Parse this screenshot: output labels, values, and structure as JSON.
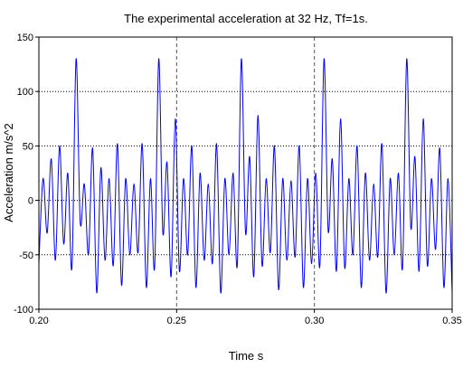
{
  "chart_data": {
    "type": "line",
    "title": "The experimental acceleration at 32 Hz, Tf=1s.",
    "xlabel": "Time s",
    "ylabel": "Acceleration  m/s^2",
    "xlim": [
      0.2,
      0.35
    ],
    "ylim": [
      -100,
      150
    ],
    "x_ticks": [
      0.2,
      0.25,
      0.3,
      0.35
    ],
    "x_tick_labels": [
      "0.20",
      "0.25",
      "0.30",
      "0.35"
    ],
    "y_ticks": [
      -100,
      -50,
      0,
      50,
      100,
      150
    ],
    "y_tick_labels": [
      "-100",
      "-50",
      "0",
      "50",
      "100",
      "150"
    ],
    "grid": {
      "horizontal": "dotted",
      "vertical": "dashed"
    },
    "series": [
      {
        "color": "#0000ff",
        "x": [
          0.2,
          0.2015,
          0.203,
          0.2045,
          0.206,
          0.2075,
          0.209,
          0.2105,
          0.212,
          0.2135,
          0.215,
          0.2165,
          0.218,
          0.2195,
          0.221,
          0.2225,
          0.224,
          0.2255,
          0.227,
          0.2285,
          0.23,
          0.2315,
          0.233,
          0.2345,
          0.236,
          0.2375,
          0.239,
          0.2405,
          0.242,
          0.2435,
          0.245,
          0.2465,
          0.248,
          0.2495,
          0.251,
          0.2525,
          0.254,
          0.2555,
          0.257,
          0.2585,
          0.26,
          0.2615,
          0.263,
          0.2645,
          0.266,
          0.2675,
          0.269,
          0.2705,
          0.272,
          0.2735,
          0.275,
          0.2765,
          0.278,
          0.2795,
          0.281,
          0.2825,
          0.284,
          0.2855,
          0.287,
          0.2885,
          0.29,
          0.2915,
          0.293,
          0.2945,
          0.296,
          0.2975,
          0.299,
          0.3005,
          0.302,
          0.3035,
          0.305,
          0.3065,
          0.308,
          0.3095,
          0.311,
          0.3125,
          0.314,
          0.3155,
          0.317,
          0.3185,
          0.32,
          0.3215,
          0.323,
          0.3245,
          0.326,
          0.3275,
          0.329,
          0.3305,
          0.332,
          0.3335,
          0.335,
          0.3365,
          0.338,
          0.3395,
          0.341,
          0.3425,
          0.344,
          0.3455,
          0.347,
          0.3485,
          0.35
        ],
        "y": [
          -58,
          20,
          -30,
          38,
          -55,
          50,
          -40,
          25,
          -62,
          130,
          -20,
          15,
          -50,
          48,
          -85,
          30,
          -55,
          20,
          -60,
          52,
          -78,
          20,
          -50,
          15,
          -48,
          52,
          -80,
          20,
          -62,
          130,
          -30,
          35,
          -70,
          75,
          -65,
          20,
          -50,
          50,
          -80,
          25,
          -55,
          15,
          -58,
          52,
          -85,
          20,
          -50,
          25,
          -60,
          130,
          -30,
          40,
          -70,
          78,
          -60,
          20,
          -48,
          50,
          -82,
          20,
          -55,
          18,
          -52,
          50,
          -80,
          20,
          -58,
          25,
          -60,
          130,
          -28,
          38,
          -65,
          75,
          -62,
          20,
          -50,
          50,
          -80,
          25,
          -55,
          15,
          -52,
          52,
          -85,
          20,
          -50,
          25,
          -62,
          130,
          -25,
          40,
          -65,
          75,
          -60,
          20,
          -45,
          48,
          -80,
          20,
          -85
        ]
      }
    ]
  }
}
